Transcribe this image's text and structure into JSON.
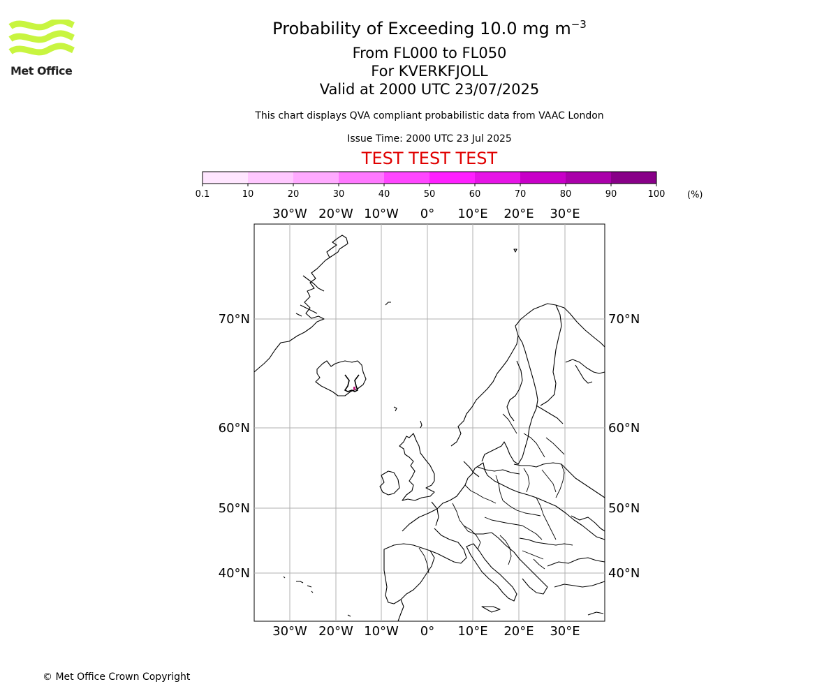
{
  "header": {
    "title_main": "Probability of Exceeding 10.0 mg m",
    "title_sup": "−3",
    "flight_levels": "From FL000 to FL050",
    "volcano": "For KVERKFJOLL",
    "valid_time": "Valid at 2000 UTC 23/07/2025",
    "description": "This chart displays QVA compliant probabilistic data from VAAC London",
    "issue_time": "Issue Time: 2000 UTC 23 Jul 2025",
    "test_banner": "TEST TEST TEST"
  },
  "logo": {
    "text": "Met Office",
    "color": "#c8f540"
  },
  "colorbar": {
    "ticks": [
      "0.1",
      "10",
      "20",
      "30",
      "40",
      "50",
      "60",
      "70",
      "80",
      "90",
      "100"
    ],
    "unit": "(%)",
    "colors": [
      "#ffe6ff",
      "#ffc8ff",
      "#ffaaff",
      "#ff78ff",
      "#ff46ff",
      "#ff20ff",
      "#e614e6",
      "#c800c8",
      "#aa00aa",
      "#880088",
      "#660066"
    ]
  },
  "map": {
    "lon_labels": [
      "30°W",
      "20°W",
      "10°W",
      "0°",
      "10°E",
      "20°E",
      "30°E"
    ],
    "lat_labels": [
      "70°N",
      "60°N",
      "50°N",
      "40°N"
    ],
    "volcano_marker_color": "#c02080"
  },
  "footer": {
    "copyright": "© Met Office Crown Copyright"
  }
}
